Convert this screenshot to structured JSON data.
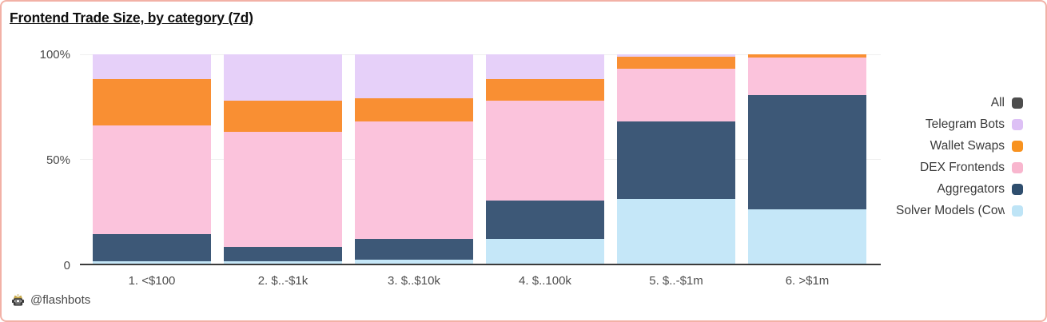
{
  "card": {
    "background": "#FFFFFF",
    "border_color": "#F2B1A6"
  },
  "title": "Frontend Trade Size, by category (7d)",
  "y_axis": {
    "ticks": [
      "100%",
      "50%",
      "0"
    ]
  },
  "attribution": {
    "handle": "@flashbots",
    "icon": "flashbots-crowned-robot-icon"
  },
  "legend": {
    "position": "right",
    "items": [
      {
        "label": "All",
        "color": "#4D4D4D",
        "truncated": false
      },
      {
        "label": "Telegram Bots",
        "color": "#DDC0F5",
        "truncated": false
      },
      {
        "label": "Wallet Swaps",
        "color": "#F8921F",
        "truncated": false
      },
      {
        "label": "DEX Frontends",
        "color": "#F8B6CE",
        "truncated": false
      },
      {
        "label": "Aggregators",
        "color": "#2F4E6E",
        "truncated": false
      },
      {
        "label": "Solver Models (Cow",
        "color": "#BEE4F6",
        "truncated": true
      }
    ]
  },
  "chart_data": {
    "type": "bar",
    "subtype": "stacked-100-percent",
    "title": "Frontend Trade Size, by category (7d)",
    "categories": [
      "1. <$100",
      "2. $..-$1k",
      "3. $..$10k",
      "4. $..100k",
      "5. $..-$1m",
      "6. >$1m"
    ],
    "stack_order": "top-to-bottom",
    "series": [
      {
        "name": "Telegram Bots",
        "color": "#E6D0F9",
        "values": [
          12,
          22,
          21,
          12,
          1,
          0
        ]
      },
      {
        "name": "Wallet Swaps",
        "color": "#F98F33",
        "values": [
          22,
          15,
          11,
          10,
          6,
          1.5
        ]
      },
      {
        "name": "DEX Frontends",
        "color": "#FBC3DC",
        "values": [
          52,
          55,
          56,
          48,
          25,
          18
        ]
      },
      {
        "name": "Aggregators",
        "color": "#3D5877",
        "values": [
          13,
          7,
          10,
          18,
          37,
          54.5
        ]
      },
      {
        "name": "Solver Models (Cow",
        "color": "#C5E7F8",
        "values": [
          1,
          1,
          2,
          12,
          31,
          26
        ]
      }
    ],
    "ylabel": "",
    "xlabel": "",
    "ylim": [
      0,
      100
    ],
    "value_format": "percent",
    "gridlines_at": [
      50,
      100
    ],
    "legend_position": "right"
  }
}
